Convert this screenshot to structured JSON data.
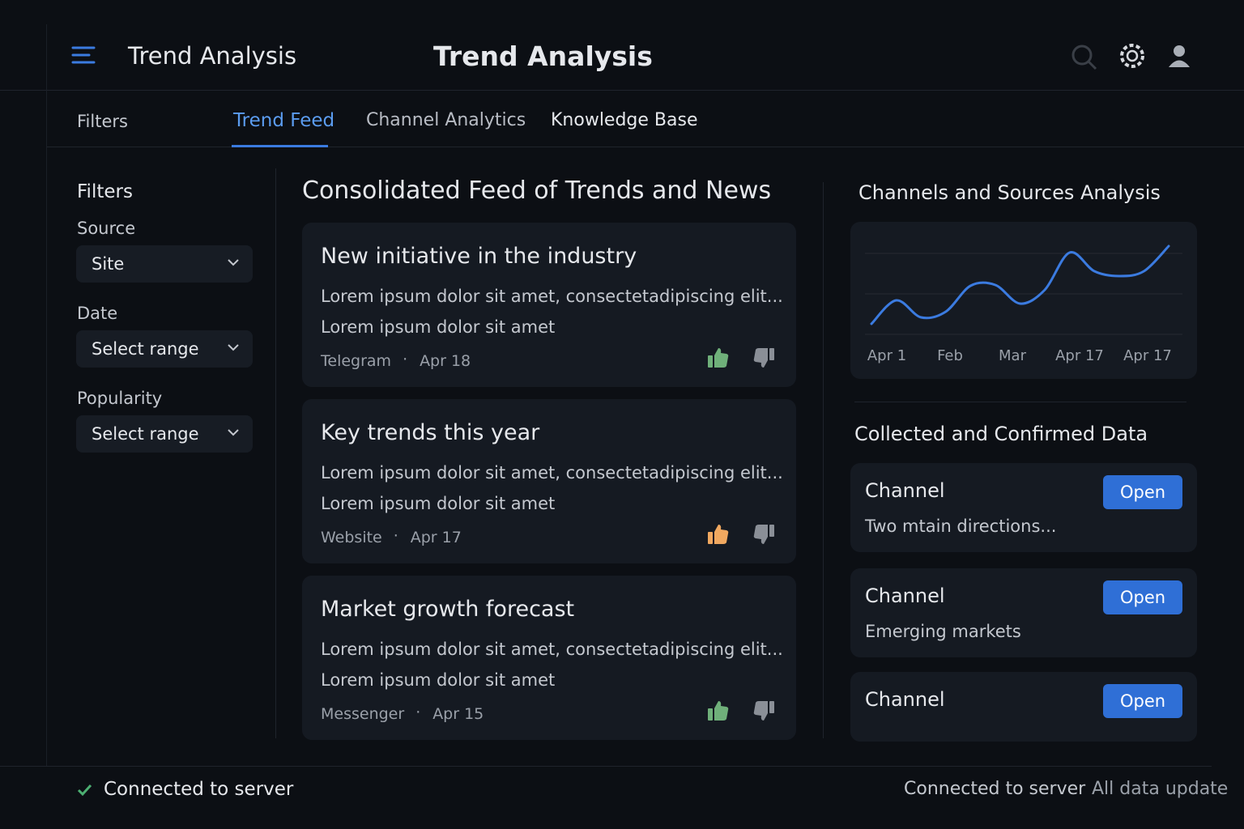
{
  "header": {
    "app_title": "Trend Analysis",
    "title": "Trend Analysis"
  },
  "tabs": [
    "Filters",
    "Trend Feed",
    "Channel Analytics",
    "Knowledge Base"
  ],
  "filters": {
    "title": "Filters",
    "fields": [
      {
        "label": "Source",
        "value": "Site"
      },
      {
        "label": "Date",
        "value": "Select range"
      },
      {
        "label": "Popularity",
        "value": "Select range"
      }
    ]
  },
  "feed": {
    "title": "Consolidated Feed of Trends and News",
    "items": [
      {
        "title": "New initiative in the industry",
        "line1": "Lorem ipsum dolor sit amet, consectetadipiscing elit...",
        "line2": "Lorem ipsum dolor sit amet",
        "source": "Telegram",
        "date": "Apr 18"
      },
      {
        "title": "Key trends this year",
        "line1": "Lorem ipsum dolor sit amet, consectetadipiscing elit...",
        "line2": "Lorem ipsum dolor sit amet",
        "source": "Website",
        "date": "Apr 17"
      },
      {
        "title": "Market growth forecast",
        "line1": "Lorem ipsum dolor sit amet, consectetadipiscing elit...",
        "line2": "Lorem ipsum dolor sit amet",
        "source": "Messenger",
        "date": "Apr 15"
      }
    ]
  },
  "chart_data": {
    "type": "line",
    "title": "Channels and Sources Analysis",
    "x_labels": [
      "Apr 1",
      "Feb",
      "Mar",
      "Apr 17",
      "Apr 17"
    ],
    "values": [
      13,
      42,
      21,
      28,
      60,
      61,
      38,
      55,
      101,
      78,
      72,
      78,
      109
    ],
    "color": "#3b7be0",
    "ylim": [
      0,
      120
    ],
    "yticks": [
      0,
      50,
      100
    ],
    "grid": true
  },
  "collected": {
    "title": "Collected and Confirmed Data",
    "items": [
      {
        "name": "Channel",
        "button": "Open",
        "text": "Two  mtain directions..."
      },
      {
        "name": "Channel",
        "button": "Open",
        "text": "Emerging markets"
      },
      {
        "name": "Channel",
        "button": "Open"
      }
    ]
  },
  "footer": {
    "status": "Connected to server",
    "status_right": "Connected to server",
    "update": "All data update"
  }
}
